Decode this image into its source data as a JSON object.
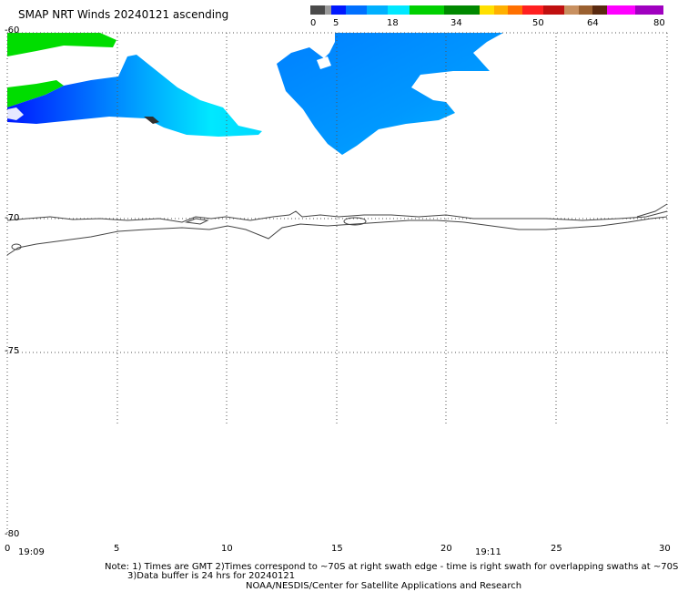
{
  "title": "SMAP NRT Winds 20240121 ascending",
  "colorbar": {
    "labels": [
      "0",
      "5",
      "18",
      "34",
      "50",
      "64",
      "80"
    ],
    "segments": [
      {
        "color": "#4a4a4a",
        "flex": 2
      },
      {
        "color": "#9a9a9a",
        "flex": 1
      },
      {
        "color": "#0018ff",
        "flex": 2
      },
      {
        "color": "#0070ff",
        "flex": 3
      },
      {
        "color": "#00b0ff",
        "flex": 3
      },
      {
        "color": "#00e8ff",
        "flex": 3
      },
      {
        "color": "#00d000",
        "flex": 5
      },
      {
        "color": "#008800",
        "flex": 5
      },
      {
        "color": "#ffe000",
        "flex": 2
      },
      {
        "color": "#ffb000",
        "flex": 2
      },
      {
        "color": "#ff7000",
        "flex": 2
      },
      {
        "color": "#ff2020",
        "flex": 3
      },
      {
        "color": "#c01010",
        "flex": 3
      },
      {
        "color": "#c89060",
        "flex": 2
      },
      {
        "color": "#9a6030",
        "flex": 2
      },
      {
        "color": "#5a2a10",
        "flex": 2
      },
      {
        "color": "#ff00ff",
        "flex": 4
      },
      {
        "color": "#a000c0",
        "flex": 4
      }
    ]
  },
  "y_axis_labels": [
    "-60",
    "-70",
    "-75",
    "-80"
  ],
  "x_axis_labels": [
    "0",
    "5",
    "10",
    "15",
    "20",
    "25",
    "30"
  ],
  "times": [
    "19:09",
    "19:11"
  ],
  "notes": [
    "Note: 1) Times are GMT 2)Times correspond to ~70S at right swath edge - time is right swath for overlapping swaths at ~70S",
    "3)Data buffer is 24 hrs for 20240121",
    "NOAA/NESDIS/Center for Satellite Applications and Research"
  ]
}
